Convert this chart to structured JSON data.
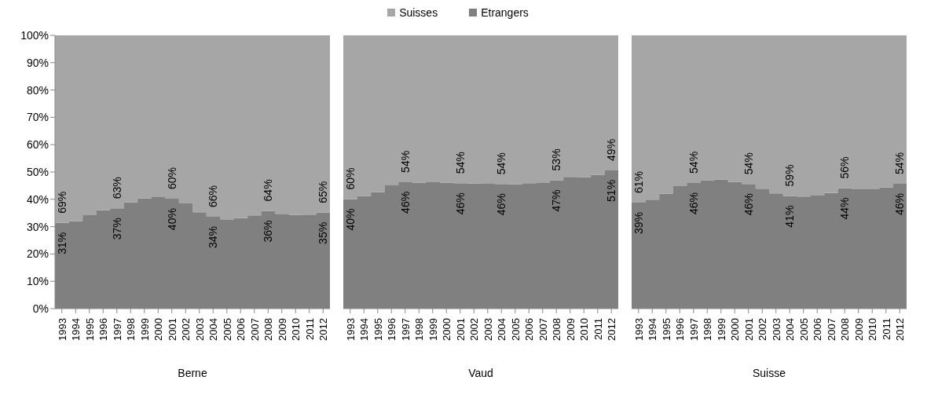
{
  "chart_data": [
    {
      "type": "bar",
      "stacked": true,
      "xlabel": "Berne",
      "legend": "top",
      "categories": [
        "1993",
        "1994",
        "1995",
        "1996",
        "1997",
        "1998",
        "1999",
        "2000",
        "2001",
        "2002",
        "2003",
        "2004",
        "2005",
        "2006",
        "2007",
        "2008",
        "2009",
        "2010",
        "2011",
        "2012"
      ],
      "series": [
        {
          "name": "Etrangers",
          "color": "#808080",
          "values": [
            31.4,
            32.0,
            34.2,
            36.0,
            36.7,
            38.9,
            40.4,
            41.0,
            40.2,
            38.5,
            35.3,
            33.6,
            32.5,
            33.1,
            34.1,
            35.8,
            34.7,
            34.3,
            34.4,
            35.1
          ],
          "value_labels": [
            "31%",
            null,
            null,
            null,
            "37%",
            null,
            null,
            null,
            "40%",
            null,
            null,
            "34%",
            null,
            null,
            null,
            "36%",
            null,
            null,
            null,
            "35%"
          ]
        },
        {
          "name": "Suisses",
          "color": "#a6a6a6",
          "values": [
            68.6,
            68.0,
            65.8,
            64.0,
            63.3,
            61.1,
            59.6,
            59.0,
            59.8,
            61.5,
            64.7,
            66.4,
            67.5,
            66.9,
            65.9,
            64.2,
            65.3,
            65.7,
            65.6,
            64.9
          ],
          "value_labels": [
            "69%",
            null,
            null,
            null,
            "63%",
            null,
            null,
            null,
            "60%",
            null,
            null,
            "66%",
            null,
            null,
            null,
            "64%",
            null,
            null,
            null,
            "65%"
          ]
        }
      ],
      "ylim": [
        0,
        100
      ],
      "yticks": [
        {
          "value": 0,
          "label": "0%"
        },
        {
          "value": 10,
          "label": "10%"
        },
        {
          "value": 20,
          "label": "20%"
        },
        {
          "value": 30,
          "label": "30%"
        },
        {
          "value": 40,
          "label": "40%"
        },
        {
          "value": 50,
          "label": "50%"
        },
        {
          "value": 60,
          "label": "60%"
        },
        {
          "value": 70,
          "label": "70%"
        },
        {
          "value": 80,
          "label": "80%"
        },
        {
          "value": 90,
          "label": "90%"
        },
        {
          "value": 100,
          "label": "100%"
        }
      ]
    },
    {
      "type": "bar",
      "stacked": true,
      "xlabel": "Vaud",
      "tick_labels": "x",
      "categories": [
        "1993",
        "1994",
        "1995",
        "1996",
        "1997",
        "1998",
        "1999",
        "2000",
        "2001",
        "2002",
        "2003",
        "2004",
        "2005",
        "2006",
        "2007",
        "2008",
        "2009",
        "2010",
        "2011",
        "2012"
      ],
      "series": [
        {
          "color": "#808080",
          "values": [
            40.1,
            41.2,
            42.6,
            45.1,
            46.3,
            46.1,
            46.3,
            46.1,
            45.9,
            45.8,
            45.7,
            45.6,
            45.5,
            45.9,
            46.0,
            47.0,
            48.2,
            48.1,
            49.0,
            50.6
          ],
          "value_labels": [
            "40%",
            null,
            null,
            null,
            "46%",
            null,
            null,
            null,
            "46%",
            null,
            null,
            "46%",
            null,
            null,
            null,
            "47%",
            null,
            null,
            null,
            "51%"
          ]
        },
        {
          "color": "#a6a6a6",
          "values": [
            59.9,
            58.8,
            57.4,
            54.9,
            53.7,
            53.9,
            53.7,
            53.9,
            54.1,
            54.2,
            54.3,
            54.4,
            54.5,
            54.1,
            54.0,
            53.0,
            51.8,
            51.9,
            51.0,
            49.4
          ],
          "value_labels": [
            "60%",
            null,
            null,
            null,
            "54%",
            null,
            null,
            null,
            "54%",
            null,
            null,
            "54%",
            null,
            null,
            null,
            "53%",
            null,
            null,
            null,
            "49%"
          ]
        }
      ],
      "ylim": [
        0,
        100
      ]
    },
    {
      "type": "bar",
      "stacked": true,
      "xlabel": "Suisse",
      "tick_labels": "x",
      "categories": [
        "1993",
        "1994",
        "1995",
        "1996",
        "1997",
        "1998",
        "1999",
        "2000",
        "2001",
        "2002",
        "2003",
        "2004",
        "2005",
        "2006",
        "2007",
        "2008",
        "2009",
        "2010",
        "2011",
        "2012"
      ],
      "series": [
        {
          "color": "#808080",
          "values": [
            38.8,
            39.9,
            42.1,
            44.8,
            46.0,
            47.0,
            47.2,
            46.4,
            45.6,
            43.9,
            42.2,
            41.2,
            41.0,
            41.4,
            42.3,
            44.1,
            43.7,
            43.7,
            44.3,
            45.7
          ],
          "value_labels": [
            "39%",
            null,
            null,
            null,
            "46%",
            null,
            null,
            null,
            "46%",
            null,
            null,
            "41%",
            null,
            null,
            null,
            "44%",
            null,
            null,
            null,
            "46%"
          ]
        },
        {
          "color": "#a6a6a6",
          "values": [
            61.2,
            60.1,
            57.9,
            55.2,
            54.0,
            53.0,
            52.8,
            53.6,
            54.4,
            56.1,
            57.8,
            58.8,
            59.0,
            58.6,
            57.7,
            55.9,
            56.3,
            56.3,
            55.7,
            54.3
          ],
          "value_labels": [
            "61%",
            null,
            null,
            null,
            "54%",
            null,
            null,
            null,
            "54%",
            null,
            null,
            "59%",
            null,
            null,
            null,
            "56%",
            null,
            null,
            null,
            "54%"
          ]
        }
      ],
      "ylim": [
        0,
        100
      ]
    }
  ]
}
